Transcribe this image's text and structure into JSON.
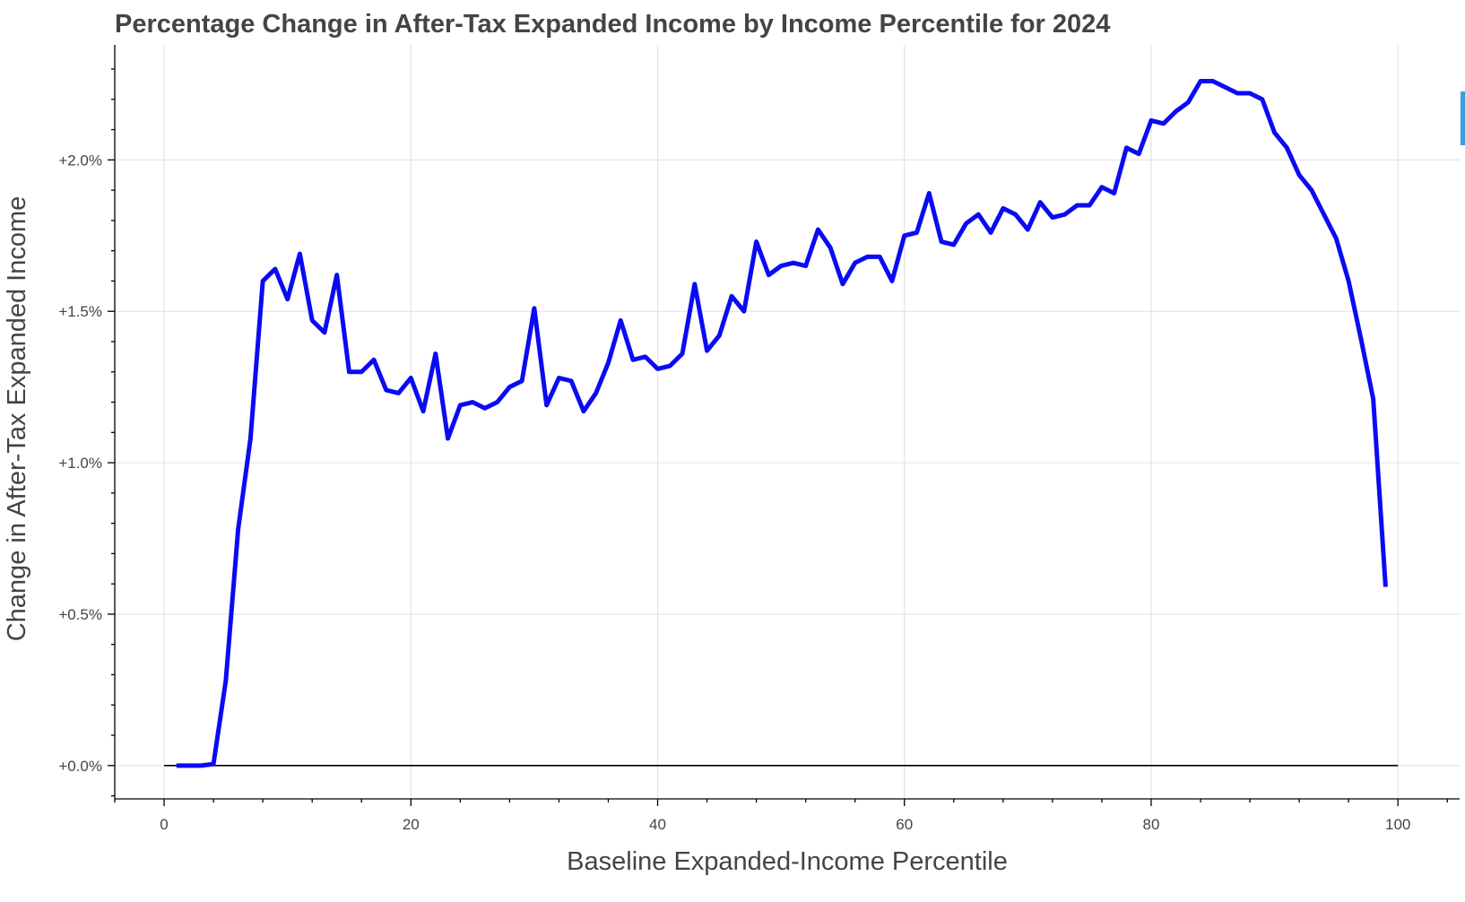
{
  "chart_data": {
    "type": "line",
    "title": "Percentage Change in After-Tax Expanded Income by Income Percentile for 2024",
    "xlabel": "Baseline Expanded-Income Percentile",
    "ylabel": "Change in After-Tax Expanded Income",
    "xlim": [
      -4,
      105
    ],
    "ylim": [
      -0.11,
      2.38
    ],
    "x_ticks": [
      0,
      20,
      40,
      60,
      80,
      100
    ],
    "x_tick_labels": [
      "0",
      "20",
      "40",
      "60",
      "80",
      "100"
    ],
    "y_ticks": [
      0,
      0.5,
      1.0,
      1.5,
      2.0
    ],
    "y_tick_labels": [
      "+0.0%",
      "+0.5%",
      "+1.0%",
      "+1.5%",
      "+2.0%"
    ],
    "grid": true,
    "legend": "none",
    "baseline": {
      "y": 0,
      "x_from": 0,
      "x_to": 100,
      "color": "#000000"
    },
    "series": [
      {
        "color": "#0a0af5",
        "x": [
          1,
          2,
          3,
          4,
          5,
          6,
          7,
          8,
          9,
          10,
          11,
          12,
          13,
          14,
          15,
          16,
          17,
          18,
          19,
          20,
          21,
          22,
          23,
          24,
          25,
          26,
          27,
          28,
          29,
          30,
          31,
          32,
          33,
          34,
          35,
          36,
          37,
          38,
          39,
          40,
          41,
          42,
          43,
          44,
          45,
          46,
          47,
          48,
          49,
          50,
          51,
          52,
          53,
          54,
          55,
          56,
          57,
          58,
          59,
          60,
          61,
          62,
          63,
          64,
          65,
          66,
          67,
          68,
          69,
          70,
          71,
          72,
          73,
          74,
          75,
          76,
          77,
          78,
          79,
          80,
          81,
          82,
          83,
          84,
          85,
          86,
          87,
          88,
          89,
          90,
          91,
          92,
          93,
          94,
          95,
          96,
          97,
          98,
          99
        ],
        "values": [
          0.0,
          0.0,
          0.0,
          0.005,
          0.28,
          0.78,
          1.08,
          1.6,
          1.64,
          1.54,
          1.69,
          1.47,
          1.43,
          1.62,
          1.3,
          1.3,
          1.34,
          1.24,
          1.23,
          1.28,
          1.17,
          1.36,
          1.08,
          1.19,
          1.2,
          1.18,
          1.2,
          1.25,
          1.27,
          1.51,
          1.19,
          1.28,
          1.27,
          1.17,
          1.23,
          1.33,
          1.47,
          1.34,
          1.35,
          1.31,
          1.32,
          1.36,
          1.59,
          1.37,
          1.42,
          1.55,
          1.5,
          1.73,
          1.62,
          1.65,
          1.66,
          1.65,
          1.77,
          1.71,
          1.59,
          1.66,
          1.68,
          1.68,
          1.6,
          1.75,
          1.76,
          1.89,
          1.73,
          1.72,
          1.79,
          1.82,
          1.76,
          1.84,
          1.82,
          1.77,
          1.86,
          1.81,
          1.82,
          1.85,
          1.85,
          1.91,
          1.89,
          2.04,
          2.02,
          2.13,
          2.12,
          2.16,
          2.19,
          2.26,
          2.26,
          2.24,
          2.22,
          2.22,
          2.2,
          2.09,
          2.04,
          1.95,
          1.9,
          1.82,
          1.74,
          1.6,
          1.41,
          1.21,
          0.59
        ]
      }
    ]
  }
}
